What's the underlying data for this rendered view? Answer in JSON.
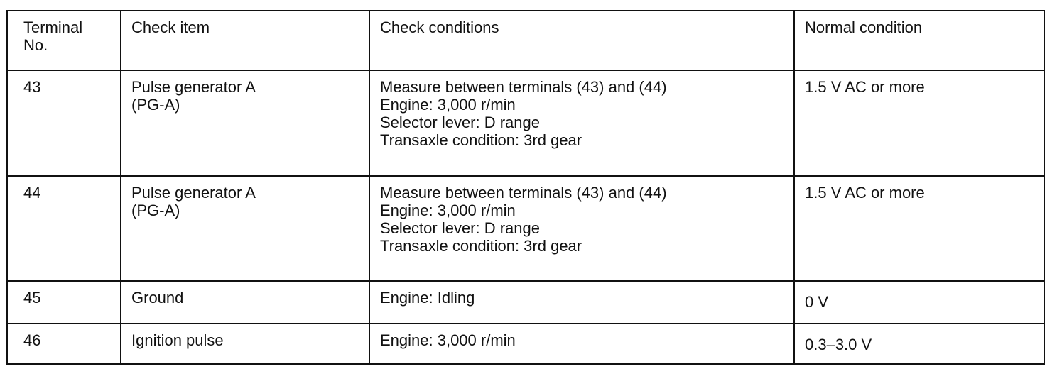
{
  "headers": [
    "Terminal No.",
    "Check item",
    "Check conditions",
    "Normal condition"
  ],
  "header_lines": [
    [
      "Terminal",
      "No."
    ],
    [
      "Check item"
    ],
    [
      "Check conditions"
    ],
    [
      "Normal condition"
    ]
  ],
  "rows": [
    {
      "terminal": "43",
      "item": [
        "Pulse generator A",
        "(PG-A)"
      ],
      "conditions": [
        "Measure between terminals (43) and (44)",
        "Engine: 3,000 r/min",
        "Selector lever: D range",
        "Transaxle condition: 3rd gear"
      ],
      "normal": "1.5 V AC or more"
    },
    {
      "terminal": "44",
      "item": [
        "Pulse generator A",
        "(PG-A)"
      ],
      "conditions": [
        "Measure between terminals (43) and (44)",
        "Engine: 3,000 r/min",
        "Selector lever: D range",
        "Transaxle condition: 3rd gear"
      ],
      "normal": "1.5 V AC or more"
    },
    {
      "terminal": "45",
      "item": [
        "Ground"
      ],
      "conditions": [
        "Engine: Idling"
      ],
      "normal": "0 V"
    },
    {
      "terminal": "46",
      "item": [
        "Ignition pulse"
      ],
      "conditions": [
        "Engine: 3,000 r/min"
      ],
      "normal": "0.3–3.0 V"
    }
  ]
}
